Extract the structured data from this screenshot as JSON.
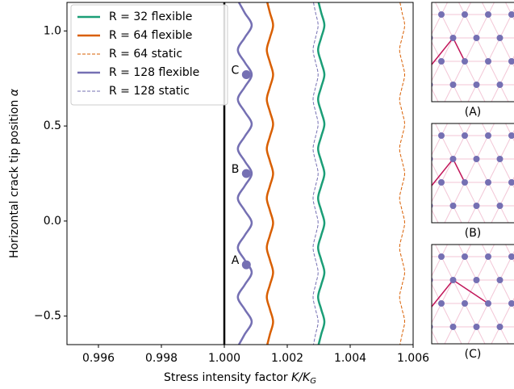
{
  "chart_data": {
    "type": "line",
    "xlabel": {
      "text": "Stress intensity factor",
      "math": "K/K",
      "sub": "G"
    },
    "ylabel": {
      "text": "Horizontal crack tip position",
      "math": "α"
    },
    "xlim": [
      0.995,
      1.006
    ],
    "xticks": [
      0.996,
      0.998,
      {
        "value": 1,
        "label": "1.000"
      },
      1.002,
      1.004,
      1.006
    ],
    "ylim": [
      -0.65,
      1.15
    ],
    "yticks": [
      {
        "value": -0.5,
        "label": "−0.5"
      },
      {
        "value": 0,
        "label": "0.0"
      },
      0.5,
      {
        "value": 1,
        "label": "1.0"
      }
    ],
    "vline": 1,
    "legend": "upper left",
    "y": [
      -0.66,
      -0.595,
      -0.53,
      -0.465,
      -0.4,
      -0.335,
      -0.27,
      -0.205,
      -0.14,
      -0.075,
      -0.01,
      0.055,
      0.12,
      0.185,
      0.25,
      0.315,
      0.38,
      0.445,
      0.51,
      0.575,
      0.64,
      0.705,
      0.77,
      0.835,
      0.9,
      0.965,
      1.03,
      1.095,
      1.16
    ],
    "series": [
      {
        "name": "R = 32 flexible",
        "color": "#1b9e77",
        "style": "solid",
        "values": [
          1.00298,
          1.00308,
          1.00318,
          1.00308,
          1.00298,
          1.00308,
          1.00318,
          1.00308,
          1.00298,
          1.00308,
          1.00318,
          1.00308,
          1.00298,
          1.00308,
          1.00318,
          1.00308,
          1.00298,
          1.00308,
          1.00318,
          1.00308,
          1.00298,
          1.00308,
          1.00318,
          1.00308,
          1.00298,
          1.00308,
          1.00318,
          1.00308,
          1.00298
        ]
      },
      {
        "name": "R = 64 flexible",
        "color": "#d95f02",
        "style": "solid",
        "values": [
          1.00135,
          1.00145,
          1.00155,
          1.00145,
          1.00135,
          1.00145,
          1.00155,
          1.00145,
          1.00135,
          1.00145,
          1.00155,
          1.00145,
          1.00135,
          1.00145,
          1.00155,
          1.00145,
          1.00135,
          1.00145,
          1.00155,
          1.00145,
          1.00135,
          1.00145,
          1.00155,
          1.00145,
          1.00135,
          1.00145,
          1.00155,
          1.00145,
          1.00135
        ]
      },
      {
        "name": "R = 64 static",
        "color": "#d95f02",
        "style": "dashed",
        "values": [
          1.00557,
          1.00565,
          1.00573,
          1.00565,
          1.00557,
          1.00565,
          1.00573,
          1.00565,
          1.00557,
          1.00565,
          1.00573,
          1.00565,
          1.00557,
          1.00565,
          1.00573,
          1.00565,
          1.00557,
          1.00565,
          1.00573,
          1.00565,
          1.00557,
          1.00565,
          1.00573,
          1.00565,
          1.00557,
          1.00565,
          1.00573,
          1.00565,
          1.00557
        ]
      },
      {
        "name": "R = 128 flexible",
        "color": "#7570b3",
        "style": "solid",
        "values": [
          1.00043,
          1.00065,
          1.00087,
          1.00065,
          1.00043,
          1.00065,
          1.00087,
          1.00065,
          1.00043,
          1.00065,
          1.00087,
          1.00065,
          1.00043,
          1.00065,
          1.00087,
          1.00065,
          1.00043,
          1.00065,
          1.00087,
          1.00065,
          1.00043,
          1.00065,
          1.00087,
          1.00065,
          1.00043,
          1.00065,
          1.00087,
          1.00065,
          1.00043
        ]
      },
      {
        "name": "R = 128 static",
        "color": "#7570b3",
        "style": "dashed",
        "values": [
          1.00282,
          1.0029,
          1.00298,
          1.0029,
          1.00282,
          1.0029,
          1.00298,
          1.0029,
          1.00282,
          1.0029,
          1.00298,
          1.0029,
          1.00282,
          1.0029,
          1.00298,
          1.0029,
          1.00282,
          1.0029,
          1.00298,
          1.0029,
          1.00282,
          1.0029,
          1.00298,
          1.0029,
          1.00282,
          1.0029,
          1.00298,
          1.0029,
          1.00282
        ]
      }
    ],
    "annotations": [
      {
        "label": "A",
        "x": 1.0007,
        "y": -0.23,
        "color": "#7570b3"
      },
      {
        "label": "B",
        "x": 1.0007,
        "y": 0.25,
        "color": "#7570b3"
      },
      {
        "label": "C",
        "x": 1.0007,
        "y": 0.77,
        "color": "#7570b3"
      }
    ],
    "insets": [
      {
        "label": "(A)"
      },
      {
        "label": "(B)"
      },
      {
        "label": "(C)"
      }
    ]
  }
}
